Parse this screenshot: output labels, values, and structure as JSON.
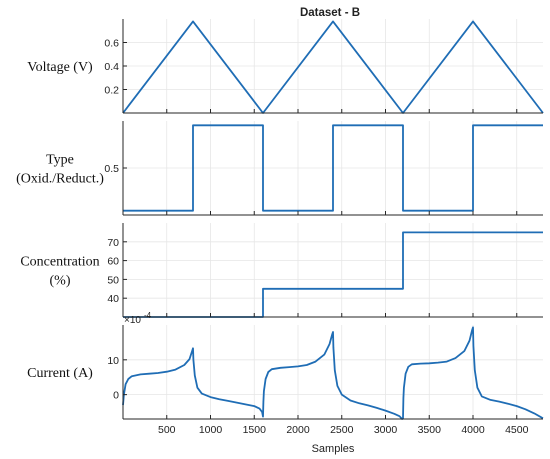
{
  "chart_data": {
    "type": "line",
    "title": "Dataset - B",
    "xlabel": "Samples",
    "xlim": [
      0,
      4800
    ],
    "x_ticks": [
      500,
      1000,
      1500,
      2000,
      2500,
      3000,
      3500,
      4000,
      4500
    ],
    "grid": true,
    "line_color": "#1f6db5",
    "panels": [
      {
        "ylabel": [
          "Voltage (V)"
        ],
        "ylim": [
          0,
          0.8
        ],
        "y_ticks": [
          0.2,
          0.4,
          0.6
        ],
        "series": [
          {
            "x": [
              0,
              800,
              1600,
              2400,
              3200,
              4000,
              4800
            ],
            "values": [
              0,
              0.78,
              0,
              0.78,
              0,
              0.78,
              0
            ]
          }
        ]
      },
      {
        "ylabel": [
          "Type",
          "(Oxid./Reduct.)"
        ],
        "ylim": [
          -0.05,
          1.05
        ],
        "y_ticks": [
          0.5
        ],
        "series": [
          {
            "step": true,
            "x": [
              0,
              800,
              1600,
              2400,
              3200,
              4000,
              4800
            ],
            "values": [
              0,
              1,
              0,
              1,
              0,
              1,
              1
            ]
          }
        ]
      },
      {
        "ylabel": [
          "Concentration",
          "(%)"
        ],
        "ylim": [
          30,
          80
        ],
        "y_ticks": [
          40,
          50,
          60,
          70
        ],
        "series": [
          {
            "step": true,
            "x": [
              0,
              1600,
              3200,
              4800
            ],
            "values": [
              30,
              45,
              75,
              75
            ]
          }
        ]
      },
      {
        "ylabel": [
          "Current (A)"
        ],
        "ylim": [
          -7,
          20
        ],
        "y_ticks": [
          0,
          10
        ],
        "exponent_label": "×10",
        "exponent_power": "-4",
        "series": [
          {
            "x": [
              0,
              10,
              30,
              60,
              100,
              200,
              300,
              400,
              500,
              600,
              700,
              760,
              790,
              800,
              805,
              820,
              850,
              900,
              1000,
              1100,
              1200,
              1300,
              1400,
              1500,
              1560,
              1590,
              1600,
              1605,
              1610,
              1630,
              1660,
              1700,
              1800,
              1900,
              2000,
              2100,
              2200,
              2300,
              2360,
              2390,
              2400,
              2405,
              2420,
              2450,
              2500,
              2600,
              2700,
              2800,
              2900,
              3000,
              3100,
              3160,
              3190,
              3200,
              3205,
              3210,
              3230,
              3260,
              3300,
              3400,
              3500,
              3600,
              3700,
              3800,
              3900,
              3960,
              3990,
              4000,
              4005,
              4020,
              4050,
              4100,
              4200,
              4300,
              4400,
              4500,
              4600,
              4700,
              4800
            ],
            "values": [
              -3,
              0,
              3,
              4.5,
              5.3,
              5.8,
              6,
              6.2,
              6.6,
              7.2,
              8.5,
              10.2,
              12.5,
              13.3,
              10,
              5.5,
              2,
              0.3,
              -0.7,
              -1.3,
              -1.8,
              -2.3,
              -2.8,
              -3.3,
              -4,
              -5,
              -6.3,
              -2,
              1,
              4.5,
              6.5,
              7.3,
              7.7,
              7.9,
              8.1,
              8.5,
              9.5,
              11.5,
              14.5,
              17.2,
              18,
              13.5,
              7,
              2.5,
              0,
              -1.7,
              -2.5,
              -3.1,
              -3.8,
              -4.6,
              -5.5,
              -6.2,
              -7,
              -6.8,
              -1,
              2,
              6,
              8,
              8.7,
              8.9,
              9,
              9.2,
              9.5,
              10.5,
              12.5,
              15.5,
              18.5,
              19.3,
              14,
              7,
              2,
              -0.5,
              -1.5,
              -2,
              -2.6,
              -3.3,
              -4.2,
              -5.4,
              -6.8
            ]
          }
        ]
      }
    ]
  }
}
